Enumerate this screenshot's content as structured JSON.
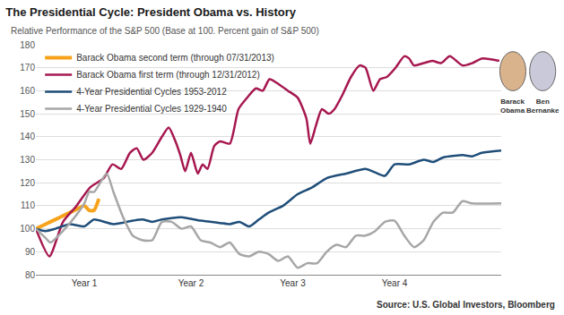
{
  "chart_data": {
    "type": "line",
    "title": "The Presidential Cycle: President Obama vs. History",
    "subtitle": "Relative Performance of the S&P 500 (Base at 100. Percent gain of S&P 500)",
    "source": "Source: U.S. Global Investors, Bloomberg",
    "annotations": [
      "Barack Obama",
      "Ben Bernanke"
    ],
    "xlim": [
      0,
      48
    ],
    "xticks": [
      {
        "value": 5,
        "label": "Year 1"
      },
      {
        "value": 16,
        "label": "Year 2"
      },
      {
        "value": 26.5,
        "label": "Year 3"
      },
      {
        "value": 37,
        "label": "Year 4"
      }
    ],
    "ylim": [
      80,
      180
    ],
    "yticks": [
      80,
      90,
      100,
      110,
      120,
      130,
      140,
      150,
      160,
      170,
      180
    ],
    "grid": true,
    "legend": "upper left",
    "series": [
      {
        "name": "Barack Obama second term (through 07/31/2013)",
        "color": "#f7a21b",
        "x": [
          0,
          1,
          2,
          3,
          4,
          5,
          5.5,
          6,
          6.5
        ],
        "values": [
          100,
          102,
          104,
          106,
          108,
          110,
          108,
          108,
          113
        ]
      },
      {
        "name": "Barack Obama first term (through 12/31/2012)",
        "color": "#a6174f",
        "x": [
          0,
          1.4,
          2.8,
          4.2,
          5.6,
          7,
          7.9,
          8.8,
          9.7,
          10.4,
          11.1,
          12,
          13,
          13.7,
          14.4,
          14.9,
          15.4,
          16,
          16.7,
          17.2,
          17.7,
          18.4,
          19,
          20,
          20.9,
          21.8,
          22.7,
          23.4,
          24.1,
          25,
          26,
          27,
          27.9,
          28.3,
          28.9,
          29.5,
          30.2,
          30.8,
          31.6,
          32.5,
          33.4,
          34,
          34.8,
          35.5,
          36.2,
          37.1,
          38,
          38.5,
          39,
          40,
          40.9,
          41.8,
          42.7,
          44,
          45,
          46,
          47.8
        ],
        "values": [
          100,
          88,
          103,
          110,
          118,
          122,
          128,
          126,
          133,
          135,
          130,
          133,
          140,
          144,
          138,
          132,
          125,
          133,
          124,
          128,
          126,
          136,
          138,
          137,
          152,
          157,
          161,
          160,
          165,
          163,
          160,
          157,
          148,
          137,
          145,
          152,
          150,
          152,
          158,
          166,
          171,
          170,
          160,
          165,
          166,
          170,
          175,
          174,
          171,
          172,
          173,
          172,
          175,
          171,
          172,
          174,
          173
        ]
      },
      {
        "name": "4-Year Presidential Cycles 1953-2012",
        "color": "#1f4e79",
        "x": [
          0,
          1,
          2,
          3.5,
          5,
          6,
          8,
          10,
          11,
          12,
          13,
          15,
          17,
          19,
          20,
          21,
          22,
          23,
          24,
          25.5,
          27,
          28.5,
          30,
          32,
          34,
          35,
          36,
          37,
          38.5,
          40,
          41,
          42,
          44,
          45,
          46,
          48
        ],
        "values": [
          100,
          99,
          100,
          102,
          101,
          104,
          102,
          103.5,
          104,
          103,
          104,
          105,
          103.5,
          102.5,
          102,
          103,
          101,
          104,
          107,
          110,
          115,
          118,
          122,
          124,
          126,
          124.5,
          123,
          128,
          128,
          130,
          129,
          131,
          132,
          131.5,
          133,
          134
        ]
      },
      {
        "name": "4-Year Presidential Cycles 1929-1940",
        "color": "#a6a6a6",
        "x": [
          0,
          1,
          1.5,
          3,
          4,
          5,
          5.5,
          6,
          7.3,
          8,
          9,
          10,
          11,
          12,
          13,
          14,
          15,
          16,
          17,
          18,
          19,
          20,
          21,
          22,
          23,
          24,
          25,
          26,
          27,
          28,
          29,
          30,
          31,
          32,
          33,
          34,
          35,
          36,
          37,
          38,
          39,
          40,
          41,
          42,
          43,
          44,
          45,
          48
        ],
        "values": [
          100,
          96,
          94,
          100,
          105,
          111,
          116,
          116,
          124,
          116,
          105,
          97,
          95,
          95,
          103,
          103,
          100,
          101,
          95,
          94,
          92,
          94,
          89,
          88,
          90,
          89,
          86,
          88,
          83,
          85,
          85,
          90,
          93,
          92,
          97,
          97,
          99,
          103,
          103.5,
          97,
          92,
          95,
          103,
          107,
          107,
          112,
          111,
          111
        ]
      }
    ]
  }
}
